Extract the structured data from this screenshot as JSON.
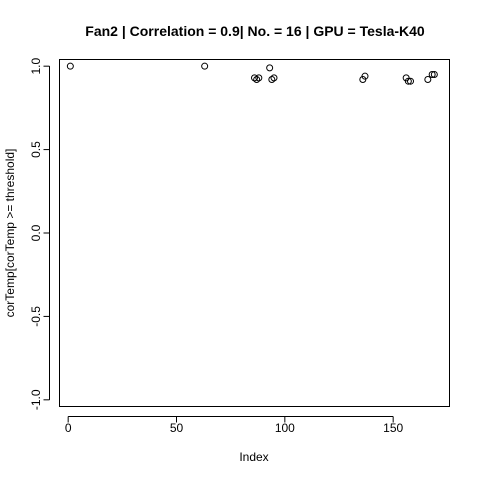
{
  "chart_data": {
    "type": "scatter",
    "title": "Fan2 | Correlation = 0.9| No. = 16 | GPU = Tesla-K40",
    "xlabel": "Index",
    "ylabel": "corTemp[corTemp >= threshold]",
    "xlim": [
      -4,
      176
    ],
    "ylim": [
      -1.04,
      1.04
    ],
    "xticks": [
      0,
      50,
      100,
      150
    ],
    "xtick_labels": [
      "0",
      "50",
      "100",
      "150"
    ],
    "yticks": [
      -1.0,
      -0.5,
      0.0,
      0.5,
      1.0
    ],
    "ytick_labels": [
      "-1.0",
      "-0.5",
      "0.0",
      "0.5",
      "1.0"
    ],
    "grid": false,
    "marker": "open-circle",
    "points": [
      {
        "x": 1,
        "y": 1.0
      },
      {
        "x": 63,
        "y": 1.0
      },
      {
        "x": 86,
        "y": 0.93
      },
      {
        "x": 87,
        "y": 0.92
      },
      {
        "x": 88,
        "y": 0.93
      },
      {
        "x": 93,
        "y": 0.99
      },
      {
        "x": 94,
        "y": 0.92
      },
      {
        "x": 95,
        "y": 0.93
      },
      {
        "x": 136,
        "y": 0.92
      },
      {
        "x": 137,
        "y": 0.94
      },
      {
        "x": 156,
        "y": 0.93
      },
      {
        "x": 157,
        "y": 0.91
      },
      {
        "x": 158,
        "y": 0.91
      },
      {
        "x": 166,
        "y": 0.92
      },
      {
        "x": 168,
        "y": 0.95
      },
      {
        "x": 169,
        "y": 0.95
      }
    ]
  }
}
